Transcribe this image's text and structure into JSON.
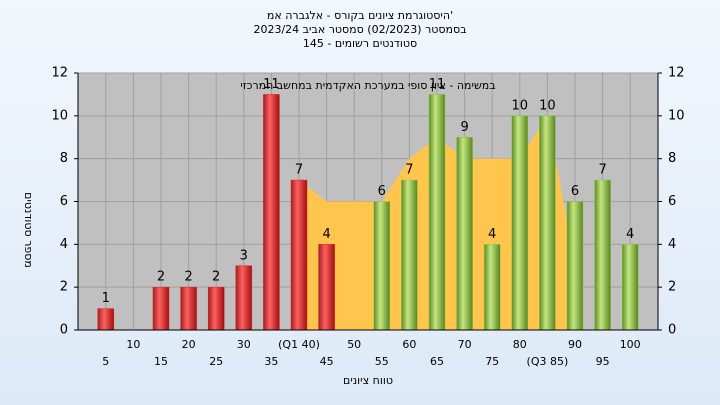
{
  "chart_data": {
    "type": "bar",
    "title": [
      "'היסטוגרמת ציונים בקורס - אלגברה אמ",
      "בסמסטר  (02/2023)  סמסטר אביב 2023/24",
      "סטודנטים רשומים - 145"
    ],
    "annotation": "במשימה - ציון סופי במערכת האקדמית במחשב המרכזי",
    "ylabel": "מספר סטודנטים",
    "xlabel": "טווח ציונים",
    "categories": [
      "5",
      "10",
      "15",
      "20",
      "25",
      "30",
      "35",
      "(Q1 40)",
      "45",
      "50",
      "55",
      "60",
      "65",
      "70",
      "75",
      "80",
      "(Q3 85)",
      "90",
      "95",
      "100"
    ],
    "values": [
      1,
      0,
      2,
      2,
      2,
      3,
      11,
      7,
      4,
      0,
      6,
      7,
      11,
      9,
      4,
      10,
      10,
      6,
      7,
      4
    ],
    "colors": [
      "#e02020",
      "#e02020",
      "#e02020",
      "#e02020",
      "#e02020",
      "#e02020",
      "#e02020",
      "#e02020",
      "#e02020",
      "#e02020",
      "#8cc63f",
      "#8cc63f",
      "#8cc63f",
      "#8cc63f",
      "#8cc63f",
      "#8cc63f",
      "#8cc63f",
      "#8cc63f",
      "#8cc63f",
      "#8cc63f"
    ],
    "area": {
      "color": "#ffc54d",
      "values": [
        null,
        null,
        null,
        null,
        null,
        null,
        null,
        7,
        6,
        6,
        6,
        8,
        9,
        8,
        8,
        8,
        10,
        3,
        null,
        null
      ]
    },
    "ylim": [
      0,
      12
    ],
    "yticks": [
      0,
      2,
      4,
      6,
      8,
      10,
      12
    ],
    "grid": true
  }
}
